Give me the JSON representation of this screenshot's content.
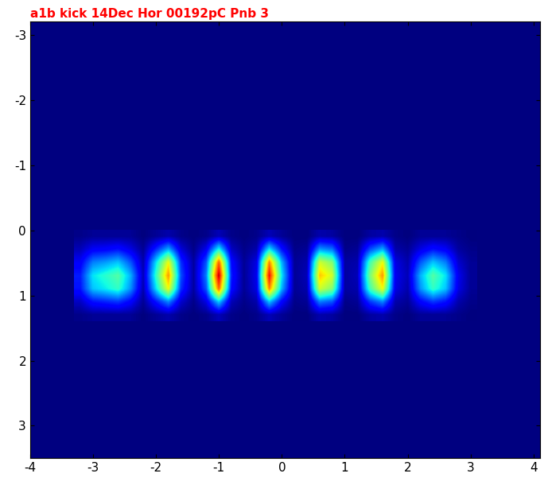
{
  "chart_data": {
    "type": "heatmap",
    "title": "a1b kick 14Dec Hor 00192pC Pnb 3",
    "xlim": [
      -4,
      4.1
    ],
    "ylim": [
      3.5,
      -3.2
    ],
    "xticks": [
      -4,
      -3,
      -2,
      -1,
      0,
      1,
      2,
      3,
      4
    ],
    "yticks": [
      -3,
      -2,
      -1,
      0,
      1,
      2,
      3
    ],
    "x_range": [
      -3.3,
      3.1
    ],
    "y_range": [
      0,
      1.4
    ],
    "clim": [
      0,
      100
    ],
    "cells": [
      [
        1,
        2,
        2,
        2,
        2,
        0,
        2,
        4,
        1,
        0,
        1,
        5,
        1,
        0,
        1,
        5,
        2,
        0,
        0,
        4,
        3,
        0,
        0,
        3,
        4,
        1,
        0,
        2,
        2,
        2,
        1,
        0
      ],
      [
        5,
        11,
        12,
        14,
        9,
        2,
        16,
        30,
        8,
        1,
        10,
        38,
        6,
        1,
        4,
        36,
        14,
        1,
        2,
        28,
        24,
        1,
        2,
        20,
        30,
        4,
        2,
        9,
        14,
        11,
        3,
        1
      ],
      [
        11,
        25,
        28,
        32,
        21,
        4,
        34,
        64,
        17,
        3,
        21,
        81,
        13,
        2,
        9,
        77,
        30,
        2,
        4,
        60,
        51,
        3,
        4,
        43,
        64,
        9,
        4,
        21,
        32,
        25,
        7,
        2
      ],
      [
        15,
        35,
        40,
        45,
        30,
        5,
        40,
        75,
        20,
        3,
        25,
        95,
        15,
        2,
        10,
        90,
        35,
        2,
        5,
        70,
        60,
        3,
        5,
        50,
        75,
        10,
        5,
        30,
        45,
        35,
        10,
        2
      ],
      [
        14,
        32,
        36,
        41,
        27,
        4,
        34,
        64,
        17,
        3,
        21,
        81,
        13,
        2,
        9,
        77,
        30,
        2,
        4,
        60,
        51,
        3,
        4,
        43,
        64,
        9,
        4,
        27,
        41,
        32,
        9,
        2
      ],
      [
        6,
        14,
        16,
        18,
        12,
        2,
        14,
        26,
        7,
        1,
        9,
        33,
        5,
        1,
        4,
        32,
        12,
        1,
        2,
        25,
        21,
        1,
        2,
        18,
        26,
        4,
        2,
        12,
        18,
        14,
        4,
        1
      ],
      [
        1,
        2,
        2,
        2,
        2,
        0,
        2,
        4,
        1,
        0,
        1,
        5,
        1,
        0,
        1,
        5,
        2,
        0,
        0,
        4,
        3,
        0,
        0,
        3,
        4,
        1,
        0,
        2,
        2,
        2,
        1,
        0
      ]
    ]
  }
}
